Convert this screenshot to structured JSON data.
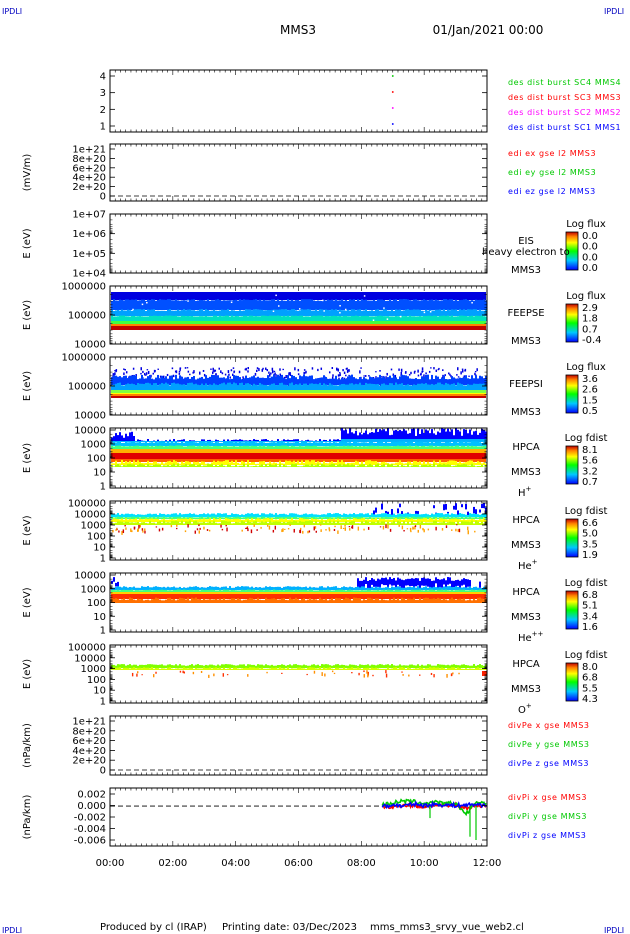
{
  "header": {
    "corner_tl": "IPDLI",
    "corner_tr": "IPDLI",
    "corner_bl": "IPDLI",
    "corner_br": "IPDLI",
    "title": "MMS3",
    "datetime": "01/Jan/2021 00:00"
  },
  "footer": {
    "produced_by": "Produced by cl (IRAP)",
    "printing_date": "Printing date: 03/Dec/2023",
    "script": "mms_mms3_srvy_vue_web2.cl"
  },
  "colors": {
    "red": "#ff0000",
    "magenta": "#ff00ff",
    "blue": "#0000ff",
    "green": "#00c800",
    "spectrogram_band": "#0000e0"
  },
  "chart_data": [
    {
      "id": "burst",
      "type": "scatter",
      "ylabel": "",
      "yticks": [
        "4",
        "3",
        "2",
        "1"
      ],
      "series": [
        {
          "name": "des dist burst SC1 MMS1",
          "color": "#0000ff",
          "x": [
            "09:00"
          ],
          "y": [
            1
          ]
        },
        {
          "name": "des dist burst SC2 MMS2",
          "color": "#ff00ff",
          "x": [
            "09:00"
          ],
          "y": [
            2
          ]
        },
        {
          "name": "des dist burst SC3 MMS3",
          "color": "#ff0000",
          "x": [
            "09:00"
          ],
          "y": [
            3
          ]
        },
        {
          "name": "des dist burst SC4 MMS4",
          "color": "#00c800",
          "x": [
            "09:00"
          ],
          "y": [
            4
          ]
        }
      ]
    },
    {
      "id": "edi",
      "type": "line",
      "ylabel": "(mV/m)",
      "yticks": [
        "1e+21",
        "8e+20",
        "6e+20",
        "4e+20",
        "2e+20",
        "0"
      ],
      "series": [
        {
          "name": "edi ex gse l2 MMS3",
          "color": "#ff0000",
          "values": []
        },
        {
          "name": "edi ey gse l2 MMS3",
          "color": "#00c800",
          "values": []
        },
        {
          "name": "edi ez gse l2 MMS3",
          "color": "#0000ff",
          "values": []
        }
      ]
    },
    {
      "id": "eis",
      "type": "heatmap",
      "ylabel": "E (eV)",
      "yticks": [
        "1e+07",
        "1e+06",
        "1e+05",
        "1e+04"
      ],
      "labels": [
        "EIS",
        "MMS3"
      ],
      "overlay_text": "heavy electron to",
      "colorbar": {
        "title": "Log flux",
        "ticks": [
          "0.0",
          "0.0",
          "0.0",
          "0.0"
        ]
      }
    },
    {
      "id": "feepse",
      "type": "heatmap",
      "ylabel": "E (eV)",
      "yticks": [
        "1000000",
        "100000",
        "10000"
      ],
      "labels": [
        "FEEPSE",
        "MMS3"
      ],
      "colorbar": {
        "title": "Log flux",
        "ticks": [
          "2.9",
          "1.8",
          "0.7",
          "-0.4"
        ]
      }
    },
    {
      "id": "feepsi",
      "type": "heatmap",
      "ylabel": "E (eV)",
      "yticks": [
        "1000000",
        "100000",
        "10000"
      ],
      "labels": [
        "FEEPSI",
        "MMS3"
      ],
      "colorbar": {
        "title": "Log flux",
        "ticks": [
          "3.6",
          "2.6",
          "1.5",
          "0.5"
        ]
      }
    },
    {
      "id": "hpca_h",
      "type": "heatmap",
      "ylabel": "E (eV)",
      "yticks": [
        "10000",
        "1000",
        "100",
        "10",
        "1"
      ],
      "labels": [
        "HPCA",
        "MMS3"
      ],
      "species": "H",
      "species_sup": "+",
      "colorbar": {
        "title": "Log fdist",
        "ticks": [
          "8.1",
          "5.6",
          "3.2",
          "0.7"
        ]
      }
    },
    {
      "id": "hpca_he",
      "type": "heatmap",
      "ylabel": "E (eV)",
      "yticks": [
        "100000",
        "10000",
        "1000",
        "100",
        "10",
        "1"
      ],
      "labels": [
        "HPCA",
        "MMS3"
      ],
      "species": "He",
      "species_sup": "+",
      "colorbar": {
        "title": "Log fdist",
        "ticks": [
          "6.6",
          "5.0",
          "3.5",
          "1.9"
        ]
      }
    },
    {
      "id": "hpca_hepp",
      "type": "heatmap",
      "ylabel": "E (eV)",
      "yticks": [
        "10000",
        "1000",
        "100",
        "10",
        "1"
      ],
      "labels": [
        "HPCA",
        "MMS3"
      ],
      "species": "He",
      "species_sup": "++",
      "colorbar": {
        "title": "Log fdist",
        "ticks": [
          "6.8",
          "5.1",
          "3.4",
          "1.6"
        ]
      }
    },
    {
      "id": "hpca_o",
      "type": "heatmap",
      "ylabel": "E (eV)",
      "yticks": [
        "100000",
        "10000",
        "1000",
        "100",
        "10",
        "1"
      ],
      "labels": [
        "HPCA",
        "MMS3"
      ],
      "species": "O",
      "species_sup": "+",
      "colorbar": {
        "title": "Log fdist",
        "ticks": [
          "8.0",
          "6.8",
          "5.5",
          "4.3"
        ]
      }
    },
    {
      "id": "divpe",
      "type": "line",
      "ylabel": "(nPa/km)",
      "yticks": [
        "1e+21",
        "8e+20",
        "6e+20",
        "4e+20",
        "2e+20",
        "0"
      ],
      "series": [
        {
          "name": "divPe x gse MMS3",
          "color": "#ff0000",
          "values": []
        },
        {
          "name": "divPe y gse MMS3",
          "color": "#00c800",
          "values": []
        },
        {
          "name": "divPe z gse MMS3",
          "color": "#0000ff",
          "values": []
        }
      ]
    },
    {
      "id": "divpi",
      "type": "line",
      "ylabel": "(nPa/km)",
      "yticks": [
        "0.002",
        "0.000",
        "-0.002",
        "-0.004",
        "-0.006"
      ],
      "ylim": [
        -0.0065,
        0.003
      ],
      "x": [
        "08:40",
        "09:00",
        "09:20",
        "09:40",
        "10:00",
        "10:20",
        "10:40",
        "11:00",
        "11:20",
        "11:40",
        "12:00"
      ],
      "series": [
        {
          "name": "divPi x gse MMS3",
          "color": "#ff0000",
          "values": [
            0.0,
            -0.0003,
            0.0002,
            0.0001,
            -0.0002,
            0.0003,
            -0.0001,
            0.0002,
            -0.0004,
            0.0001,
            0.0
          ]
        },
        {
          "name": "divPi y gse MMS3",
          "color": "#00c800",
          "values": [
            0.0002,
            0.0006,
            0.0009,
            0.0008,
            0.0005,
            0.0007,
            0.0004,
            0.0006,
            -0.0015,
            0.0008,
            0.0005
          ]
        },
        {
          "name": "divPi z gse MMS3",
          "color": "#0000ff",
          "values": [
            -0.0001,
            0.0002,
            0.0,
            0.0004,
            0.0001,
            0.0003,
            0.0002,
            0.0001,
            0.0002,
            0.0003,
            0.0001
          ]
        }
      ]
    }
  ],
  "xaxis": {
    "ticks": [
      "00:00",
      "02:00",
      "04:00",
      "06:00",
      "08:00",
      "10:00",
      "12:00"
    ],
    "range": [
      "00:00",
      "12:00"
    ]
  }
}
